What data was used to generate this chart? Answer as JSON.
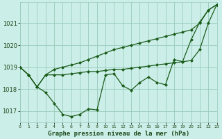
{
  "title": "Graphe pression niveau de la mer (hPa)",
  "bg_color": "#cceee8",
  "grid_color": "#99ccbb",
  "line_color": "#1a5c1a",
  "xlim": [
    0,
    23
  ],
  "ylim": [
    1016.5,
    1021.95
  ],
  "yticks": [
    1017,
    1018,
    1019,
    1020,
    1021
  ],
  "xticks": [
    0,
    1,
    2,
    3,
    4,
    5,
    6,
    7,
    8,
    9,
    10,
    11,
    12,
    13,
    14,
    15,
    16,
    17,
    18,
    19,
    20,
    21,
    22,
    23
  ],
  "series": [
    [
      1019.0,
      1018.65,
      1018.1,
      1017.85,
      1017.35,
      1016.85,
      1016.75,
      1016.85,
      1017.1,
      1017.05,
      1018.65,
      1018.7,
      1018.15,
      1017.95,
      1018.3,
      1018.55,
      1018.3,
      1018.2,
      1019.35,
      1019.25,
      1020.25,
      1021.05,
      1021.6,
      1021.85
    ],
    [
      1019.0,
      1018.65,
      1018.1,
      1018.65,
      1018.65,
      1018.65,
      1018.7,
      1018.75,
      1018.8,
      1018.8,
      1018.85,
      1018.9,
      1018.9,
      1018.95,
      1019.0,
      1019.05,
      1019.1,
      1019.15,
      1019.2,
      1019.25,
      1019.3,
      1019.8,
      1021.0,
      1021.85
    ],
    [
      1019.0,
      1018.65,
      1018.1,
      1018.65,
      1018.9,
      1019.0,
      1019.1,
      1019.2,
      1019.35,
      1019.5,
      1019.65,
      1019.8,
      1019.9,
      1020.0,
      1020.1,
      1020.2,
      1020.3,
      1020.4,
      1020.5,
      1020.6,
      1020.7,
      1021.0,
      1021.6,
      1021.85
    ]
  ],
  "marker": "D",
  "markersize": 2.0,
  "linewidth": 0.9,
  "figsize": [
    3.2,
    2.0
  ],
  "dpi": 100,
  "title_fontsize": 6.5,
  "ytick_fontsize": 6,
  "xtick_fontsize": 4.5
}
